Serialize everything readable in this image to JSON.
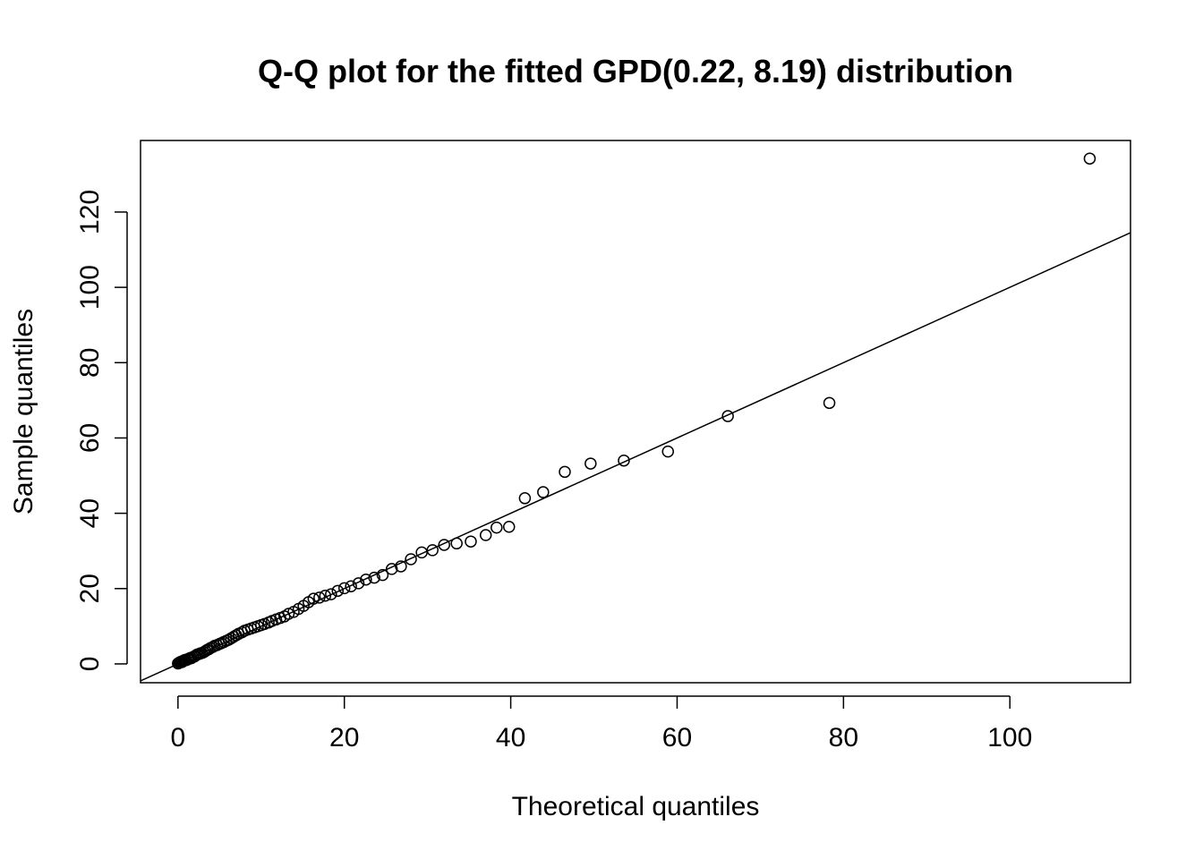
{
  "chart_data": {
    "type": "scatter",
    "title": "Q-Q plot for the fitted GPD(0.22, 8.19) distribution",
    "xlabel": "Theoretical quantiles",
    "ylabel": "Sample quantiles",
    "xlim": [
      -4.5,
      114.5
    ],
    "ylim": [
      -5,
      139
    ],
    "xticks": [
      0,
      20,
      40,
      60,
      80,
      100
    ],
    "yticks": [
      0,
      20,
      40,
      60,
      80,
      100,
      120
    ],
    "grid": false,
    "reference_line": {
      "intercept": 0,
      "slope": 1
    },
    "series": [
      {
        "marker": "open-circle",
        "points": [
          [
            0.0,
            0.1
          ],
          [
            0.1,
            0.2
          ],
          [
            0.2,
            0.4
          ],
          [
            0.3,
            0.5
          ],
          [
            0.4,
            0.6
          ],
          [
            0.5,
            0.5
          ],
          [
            0.6,
            0.7
          ],
          [
            0.7,
            0.9
          ],
          [
            0.8,
            1.0
          ],
          [
            0.9,
            1.1
          ],
          [
            1.0,
            1.0
          ],
          [
            1.2,
            1.2
          ],
          [
            1.3,
            1.4
          ],
          [
            1.5,
            1.6
          ],
          [
            1.6,
            1.5
          ],
          [
            1.8,
            1.8
          ],
          [
            2.0,
            2.0
          ],
          [
            2.1,
            2.2
          ],
          [
            2.3,
            2.5
          ],
          [
            2.5,
            2.6
          ],
          [
            2.7,
            2.8
          ],
          [
            2.9,
            2.9
          ],
          [
            3.1,
            3.1
          ],
          [
            3.3,
            3.4
          ],
          [
            3.5,
            3.7
          ],
          [
            3.7,
            3.9
          ],
          [
            3.9,
            4.2
          ],
          [
            4.2,
            4.5
          ],
          [
            4.4,
            4.8
          ],
          [
            4.7,
            5.0
          ],
          [
            5.0,
            5.3
          ],
          [
            5.2,
            5.5
          ],
          [
            5.5,
            5.8
          ],
          [
            5.8,
            6.1
          ],
          [
            6.1,
            6.4
          ],
          [
            6.4,
            6.8
          ],
          [
            6.7,
            7.2
          ],
          [
            7.0,
            7.6
          ],
          [
            7.3,
            8.0
          ],
          [
            7.7,
            8.4
          ],
          [
            8.0,
            8.8
          ],
          [
            8.4,
            9.1
          ],
          [
            8.8,
            9.4
          ],
          [
            9.2,
            9.7
          ],
          [
            9.6,
            10.0
          ],
          [
            10.0,
            10.3
          ],
          [
            10.4,
            10.6
          ],
          [
            10.9,
            11.0
          ],
          [
            11.3,
            11.4
          ],
          [
            11.8,
            11.8
          ],
          [
            12.3,
            12.2
          ],
          [
            12.8,
            12.6
          ],
          [
            13.3,
            13.3
          ],
          [
            13.9,
            13.8
          ],
          [
            14.5,
            14.6
          ],
          [
            15.1,
            15.4
          ],
          [
            15.7,
            16.4
          ],
          [
            16.3,
            17.3
          ],
          [
            17.0,
            17.6
          ],
          [
            17.7,
            18.1
          ],
          [
            18.4,
            18.5
          ],
          [
            19.2,
            19.4
          ],
          [
            20.0,
            20.1
          ],
          [
            20.8,
            20.6
          ],
          [
            21.7,
            21.4
          ],
          [
            22.6,
            22.4
          ],
          [
            23.6,
            22.9
          ],
          [
            24.6,
            23.6
          ],
          [
            25.7,
            25.2
          ],
          [
            26.8,
            25.9
          ],
          [
            28.0,
            27.8
          ],
          [
            29.3,
            29.6
          ],
          [
            30.6,
            30.2
          ],
          [
            32.0,
            31.6
          ],
          [
            33.5,
            32.0
          ],
          [
            35.2,
            32.5
          ],
          [
            37.0,
            34.2
          ],
          [
            38.3,
            36.2
          ],
          [
            39.8,
            36.4
          ],
          [
            41.7,
            44.0
          ],
          [
            43.9,
            45.6
          ],
          [
            46.5,
            51.0
          ],
          [
            49.6,
            53.2
          ],
          [
            53.6,
            54.0
          ],
          [
            58.9,
            56.4
          ],
          [
            66.1,
            65.8
          ],
          [
            78.3,
            69.3
          ],
          [
            109.6,
            134.2
          ]
        ]
      }
    ]
  }
}
